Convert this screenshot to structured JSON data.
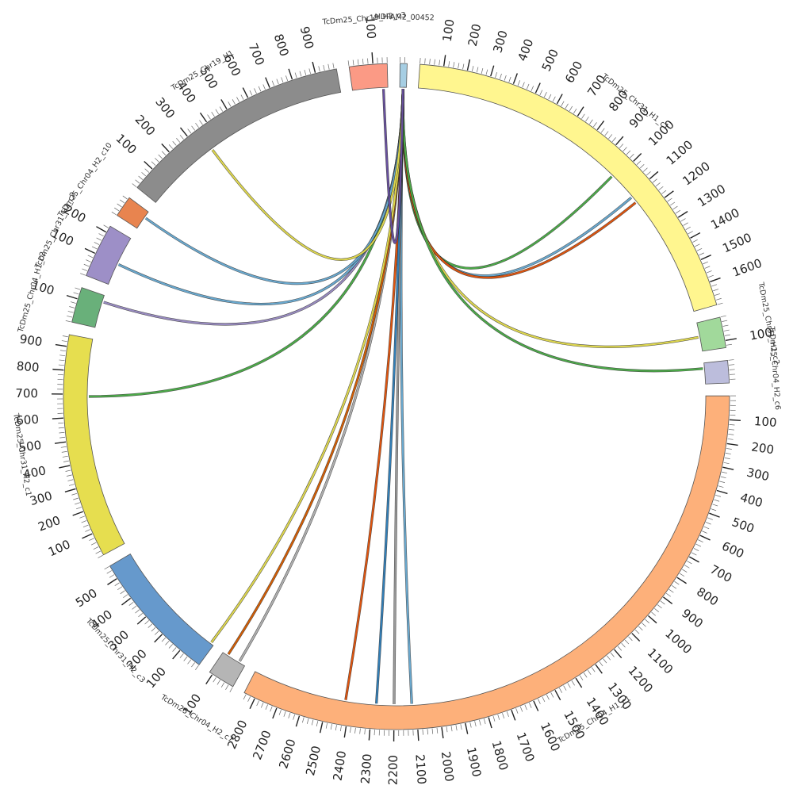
{
  "diagram": {
    "type": "circos",
    "gap_deg": 2.2,
    "segments": [
      {
        "label": "HDPAM2_00452",
        "length": 30,
        "color": "#a6cee3"
      },
      {
        "label": "TcDm25_Chr31_H1_c1",
        "length": 1700,
        "color": "#fff68f",
        "ticks": [
          100,
          200,
          300,
          400,
          500,
          600,
          700,
          800,
          900,
          1000,
          1100,
          1200,
          1300,
          1400,
          1500,
          1600
        ]
      },
      {
        "label": "TcDm25_Chr31_H1_c2",
        "length": 130,
        "color": "#a1d99b",
        "ticks": [
          100
        ]
      },
      {
        "label": "TcDm25_Chr04_H2_c6",
        "length": 95,
        "color": "#bcbddc"
      },
      {
        "label": "TcDm25_Chr04_H1_c1",
        "length": 2850,
        "color": "#fdb07a",
        "ticks": [
          100,
          200,
          300,
          400,
          500,
          600,
          700,
          800,
          900,
          1000,
          1100,
          1200,
          1300,
          1400,
          1500,
          1600,
          1700,
          1800,
          1900,
          2000,
          2100,
          2200,
          2300,
          2400,
          2500,
          2600,
          2700,
          2800
        ]
      },
      {
        "label": "TcDm25_Chr04_H2_c7",
        "length": 115,
        "color": "#b5b5b5",
        "ticks": [
          100
        ]
      },
      {
        "label": "TcDm25_Chr31_H2_c3",
        "length": 560,
        "color": "#6699cc",
        "ticks": [
          100,
          200,
          300,
          400,
          500
        ]
      },
      {
        "label": "TcDm25_Chr31_H2_c1",
        "length": 950,
        "color": "#e6de4f",
        "ticks": [
          100,
          200,
          300,
          400,
          500,
          600,
          700,
          800,
          900
        ]
      },
      {
        "label": "TcDm25_Chr04_H1_c2",
        "length": 150,
        "color": "#69b07a",
        "ticks": [
          100
        ]
      },
      {
        "label": "TcDm25_Chr31_H2_c2",
        "length": 230,
        "color": "#9d8fc7",
        "ticks": [
          100,
          200
        ]
      },
      {
        "label": "TcDm25_Chr04_H2_c10",
        "length": 90,
        "color": "#e8844f"
      },
      {
        "label": "TcDm25_Chr19_H1",
        "length": 990,
        "color": "#8c8c8c",
        "ticks": [
          100,
          200,
          300,
          400,
          500,
          600,
          700,
          800,
          900
        ]
      },
      {
        "label": "TcDm25_Chr19_H2_c3",
        "length": 160,
        "color": "#fb9a85",
        "ticks": [
          100
        ]
      }
    ],
    "links": [
      {
        "from": [
          0,
          15
        ],
        "to": [
          1,
          980
        ],
        "color": "#4daf4a"
      },
      {
        "from": [
          0,
          15
        ],
        "to": [
          1,
          1110
        ],
        "color": "#6baed6"
      },
      {
        "from": [
          0,
          15
        ],
        "to": [
          1,
          1140
        ],
        "color": "#e6550d"
      },
      {
        "from": [
          0,
          15
        ],
        "to": [
          2,
          65
        ],
        "color": "#e6de4f"
      },
      {
        "from": [
          0,
          15
        ],
        "to": [
          3,
          25
        ],
        "color": "#4daf4a"
      },
      {
        "from": [
          0,
          15
        ],
        "to": [
          4,
          2120
        ],
        "color": "#6baed6"
      },
      {
        "from": [
          0,
          15
        ],
        "to": [
          4,
          2200
        ],
        "color": "#9e9e9e"
      },
      {
        "from": [
          0,
          15
        ],
        "to": [
          4,
          2280
        ],
        "color": "#3182bd"
      },
      {
        "from": [
          0,
          15
        ],
        "to": [
          4,
          2420
        ],
        "color": "#e6550d"
      },
      {
        "from": [
          0,
          15
        ],
        "to": [
          5,
          30
        ],
        "color": "#b5b5b5"
      },
      {
        "from": [
          0,
          15
        ],
        "to": [
          5,
          90
        ],
        "color": "#d95f02"
      },
      {
        "from": [
          0,
          15
        ],
        "to": [
          6,
          15
        ],
        "color": "#e6de4f"
      },
      {
        "from": [
          0,
          15
        ],
        "to": [
          7,
          690
        ],
        "color": "#4daf4a"
      },
      {
        "from": [
          0,
          15
        ],
        "to": [
          8,
          120
        ],
        "color": "#9d8fc7"
      },
      {
        "from": [
          0,
          15
        ],
        "to": [
          9,
          100
        ],
        "color": "#6baed6"
      },
      {
        "from": [
          0,
          15
        ],
        "to": [
          10,
          60
        ],
        "color": "#6baed6"
      },
      {
        "from": [
          0,
          15
        ],
        "to": [
          11,
          350
        ],
        "color": "#e6de4f"
      },
      {
        "from": [
          0,
          15
        ],
        "to": [
          12,
          140
        ],
        "color": "#6a51a3"
      }
    ]
  }
}
